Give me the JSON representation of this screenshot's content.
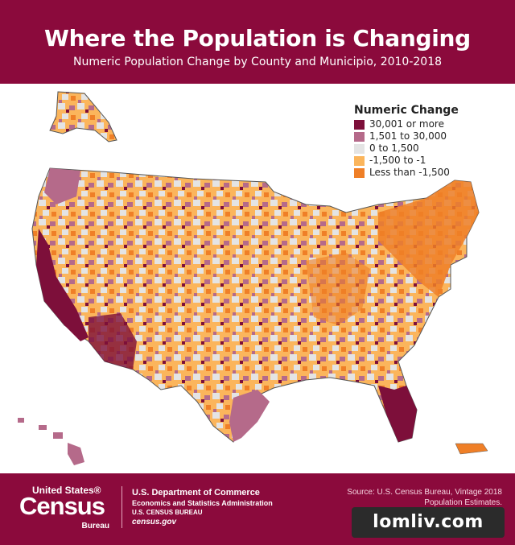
{
  "header": {
    "title": "Where the Population is Changing",
    "subtitle": "Numeric Population Change by County and Municipio, 2010-2018"
  },
  "legend": {
    "title": "Numeric Change",
    "items": [
      {
        "label": "30,001 or more",
        "color": "#7d0f3a"
      },
      {
        "label": "1,501 to 30,000",
        "color": "#b56a8a"
      },
      {
        "label": "0 to 1,500",
        "color": "#e4e4e4"
      },
      {
        "label": "-1,500 to -1",
        "color": "#fbb55c"
      },
      {
        "label": "Less than -1,500",
        "color": "#ef7f27"
      }
    ]
  },
  "footer": {
    "logo_top": "United States®",
    "logo_main": "Census",
    "logo_bottom": "Bureau",
    "agency_line1": "U.S. Department of Commerce",
    "agency_line2": "Economics and Statistics Administration",
    "agency_line3": "U.S. CENSUS BUREAU",
    "agency_line4": "census.gov",
    "source_line1": "Source: U.S. Census Bureau, Vintage 2018",
    "source_line2": "Population Estimates."
  },
  "watermark": "lomliv.com"
}
